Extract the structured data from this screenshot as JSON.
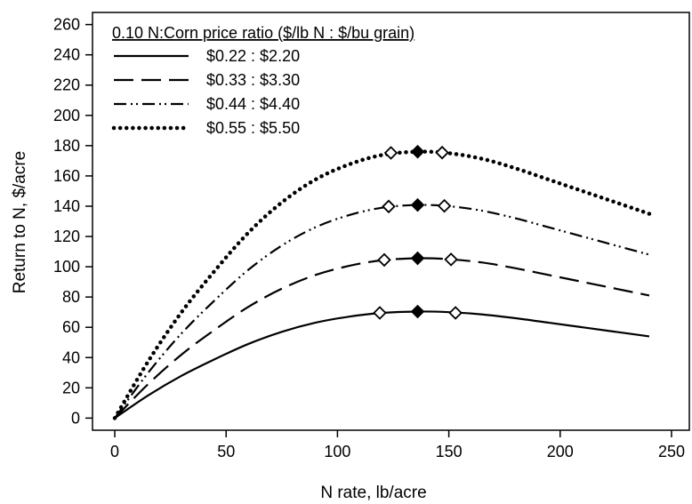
{
  "chart_data": {
    "type": "line",
    "title": "",
    "xlabel": "N rate, lb/acre",
    "ylabel": "Return to N, $/acre",
    "xlim": [
      -10,
      258
    ],
    "ylim": [
      -8,
      268
    ],
    "x_ticks": [
      0,
      50,
      100,
      150,
      200,
      250
    ],
    "y_ticks": [
      0,
      20,
      40,
      60,
      80,
      100,
      120,
      140,
      160,
      180,
      200,
      220,
      240,
      260
    ],
    "legend": {
      "title": "0.10 N:Corn price ratio ($/lb N : $/bu grain)",
      "position": "top-left"
    },
    "x": [
      0,
      15,
      30,
      45,
      60,
      75,
      90,
      105,
      120,
      136,
      150,
      165,
      180,
      195,
      210,
      225,
      240
    ],
    "series": [
      {
        "name": "$0.22 : $2.20",
        "style": "solid",
        "values": [
          0,
          15,
          28,
          39,
          49,
          57,
          63,
          67,
          69.5,
          70.4,
          70,
          68.5,
          66,
          63,
          60,
          57,
          54
        ],
        "optimum": {
          "x": 136,
          "y": 70.4
        },
        "range_points": [
          {
            "x": 119,
            "y": 69.5
          },
          {
            "x": 153,
            "y": 69.5
          }
        ]
      },
      {
        "name": "$0.33 : $3.30",
        "style": "long-dash",
        "values": [
          0,
          22.5,
          42,
          58.5,
          73.5,
          85.5,
          94.5,
          100.5,
          104.3,
          105.6,
          105,
          102.8,
          99,
          94.5,
          90,
          85.5,
          81
        ],
        "optimum": {
          "x": 136,
          "y": 105.6
        },
        "range_points": [
          {
            "x": 121,
            "y": 104.5
          },
          {
            "x": 151,
            "y": 104.8
          }
        ]
      },
      {
        "name": "$0.44 : $4.40",
        "style": "dash-dot-dot",
        "values": [
          0,
          30,
          56,
          78,
          98,
          114,
          126,
          134,
          139,
          140.8,
          140,
          137,
          132,
          126,
          120,
          114,
          108
        ],
        "optimum": {
          "x": 136,
          "y": 140.8
        },
        "range_points": [
          {
            "x": 123,
            "y": 139.8
          },
          {
            "x": 148,
            "y": 140.2
          }
        ]
      },
      {
        "name": "$0.55 : $5.50",
        "style": "dotted",
        "values": [
          0,
          37.5,
          70,
          97.5,
          122.5,
          142.5,
          157.5,
          167.5,
          173.8,
          176,
          175,
          171.3,
          165,
          157.5,
          150,
          142.5,
          135
        ],
        "optimum": {
          "x": 136,
          "y": 176
        },
        "range_points": [
          {
            "x": 124,
            "y": 175.2
          },
          {
            "x": 147,
            "y": 175.4
          }
        ]
      }
    ]
  }
}
